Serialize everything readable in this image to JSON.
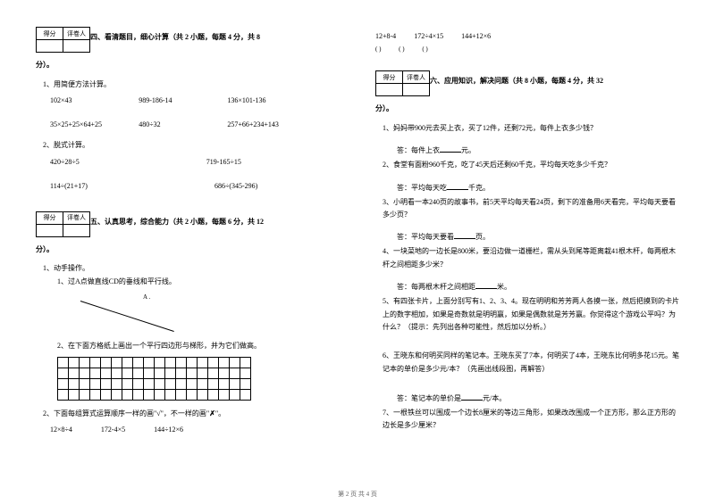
{
  "scorebox": {
    "col1": "得分",
    "col2": "评卷人"
  },
  "section4": {
    "title_prefix": "四、看清题目，细心计算（共 2 小题，每题 4 分，共 8",
    "title_suffix": "分）。",
    "q1": {
      "label": "1、用简便方法计算。",
      "r1": {
        "a": "102×43",
        "b": "989-186-14",
        "c": "136×101-136"
      },
      "r2": {
        "a": "35×25+25×64+25",
        "b": "480÷32",
        "c": "257+66+234+143"
      }
    },
    "q2": {
      "label": "2、脱式计算。",
      "r1": {
        "a": "420÷28÷5",
        "b": "719-165÷15"
      },
      "r2": {
        "a": "114÷(21+17)",
        "b": "686÷(345-296)"
      }
    }
  },
  "section4_topright": {
    "r": {
      "a": "12+8-4",
      "b": "172÷4×15",
      "c": "144+12×6"
    },
    "p": {
      "a": "(    )",
      "b": "(    )",
      "c": "(    )"
    }
  },
  "section5": {
    "title_prefix": "五、认真思考，综合能力（共 2 小题，每题 6 分，共 12",
    "title_suffix": "分）。",
    "q1": {
      "label": "1、动手操作。",
      "s1": "1、过A点做直线CD的垂线和平行线。",
      "geo_label": "A .",
      "s2": "2、在下面方格纸上画出一个平行四边形与梯形，并为它们做高。"
    },
    "q2": {
      "label_a": "2、下面每组算式运算顺序一样的画\"√\"，不一样的画\"",
      "label_x": "✗",
      "label_b": "\"。",
      "r": {
        "a": "12×8÷4",
        "b": "172-4×5",
        "c": "144÷12×6"
      }
    }
  },
  "section6": {
    "title_prefix": "六、应用知识，解决问题（共 8 小题，每题 4 分，共 32",
    "title_suffix": "分）。",
    "q1": {
      "text": "1、妈妈带900元去买上衣，买了12件，还剩72元，每件上衣多少钱？",
      "ans_a": "答：每件上衣",
      "ans_b": "元。"
    },
    "q2": {
      "text": "2、食堂有面粉960千克，吃了45天后还剩60千克，平均每天吃多少千克？",
      "ans_a": "答：平均每天吃",
      "ans_b": "千克。"
    },
    "q3": {
      "text": "3、小明看一本240页的故事书，前5天平均每天看24页，剩下的准备用6天看完，平均每天要看多少页？",
      "ans_a": "答：平均每天要看",
      "ans_b": "页。"
    },
    "q4": {
      "text": "4、一块菜地的一边长是800米，要沿边做一道栅栏，需从头到尾等距离栽41根木杆，每两根木杆之间相距多少米？",
      "ans_a": "答：每两根木杆之间相距",
      "ans_b": "米。"
    },
    "q5": {
      "text": "5、有四张卡片，上面分别写有1、2、3、4。现在明明和芳芳两人各摸一张，然后把摸到的卡片上的数字相加，如果是奇数就是明明赢，如果是偶数就是芳芳赢。你觉得这个游戏公平吗？为什么？（提示：先列出各种可能性，然后加以分析。）"
    },
    "q6": {
      "text": "6、王晓东和何明买同样的笔记本。王晓东买了7本，何明买了4本，王晓东比何明多花15元。笔记本的单价是多少元/本？（先画出线段图，再解答）",
      "ans_a": "答：笔记本的单价是",
      "ans_b": "元/本。"
    },
    "q7": {
      "text": "7、一根铁丝可以围成一个边长8厘米的等边三角形，如果改改围成一个正方形，那么正方形的边长是多少厘米？"
    }
  },
  "footer": "第 2 页 共 4 页",
  "grid": {
    "rows": 4,
    "cols": 18
  }
}
